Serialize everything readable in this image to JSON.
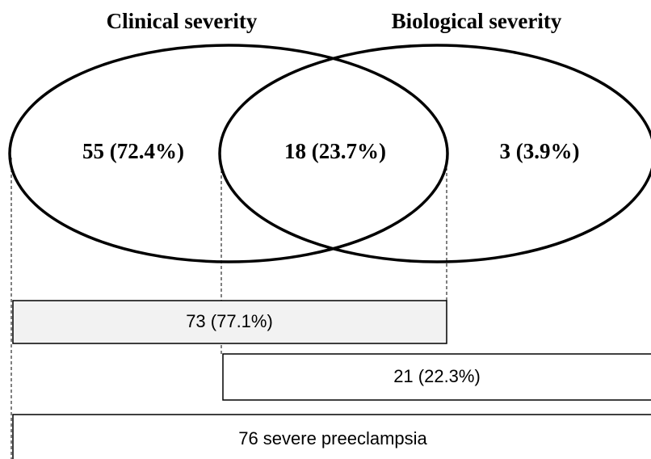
{
  "sets": [
    {
      "label": "Clinical severity"
    },
    {
      "label": "Biological severity"
    }
  ],
  "regions": [
    {
      "label": "55 (72.4%)"
    },
    {
      "label": "18 (23.7%)"
    },
    {
      "label": "3 (3.9%)"
    }
  ],
  "bars": [
    {
      "label": "73 (77.1%)"
    },
    {
      "label": "21 (22.3%)"
    },
    {
      "label": "76 severe preeclampsia"
    }
  ]
}
